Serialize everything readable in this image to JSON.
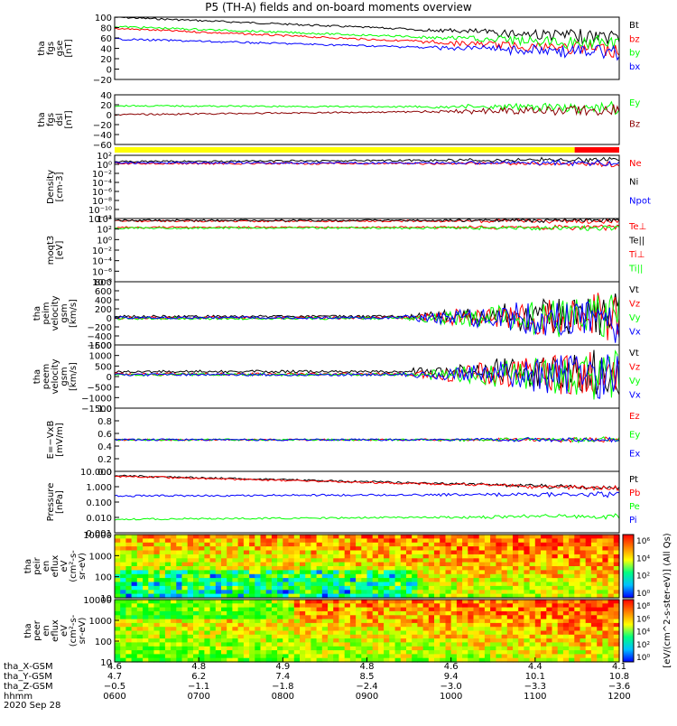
{
  "title": "P5 (TH-A) fields and on-board moments overview",
  "date_label": "2020 Sep 28",
  "colors": {
    "black": "#000000",
    "red": "#ff0000",
    "green": "#00ff00",
    "blue": "#0000ff",
    "darkred": "#8b0000",
    "yellow": "#ffff00"
  },
  "chart_data": [
    {
      "id": "fgs_gse",
      "type": "line",
      "ylabel": [
        "tha",
        "fgs",
        "gse",
        "[nT]"
      ],
      "yticks": [
        "100",
        "80",
        "60",
        "40",
        "20",
        "0",
        "−20"
      ],
      "ylim": [
        -20,
        100
      ],
      "series": [
        {
          "name": "Bt",
          "color": "#000000"
        },
        {
          "name": "bz",
          "color": "#ff0000"
        },
        {
          "name": "by",
          "color": "#00ff00"
        },
        {
          "name": "bx",
          "color": "#0000ff"
        }
      ]
    },
    {
      "id": "fgs_dsl",
      "type": "line",
      "ylabel": [
        "tha",
        "fgs",
        "dsl",
        "[nT]"
      ],
      "yticks": [
        "40",
        "20",
        "0",
        "−20",
        "−40",
        "−60"
      ],
      "ylim": [
        -70,
        40
      ],
      "series": [
        {
          "name": "Ey",
          "color": "#00ff00"
        },
        {
          "name": "Bz",
          "color": "#8b0000"
        }
      ]
    },
    {
      "id": "mode_bar",
      "type": "bar",
      "segments": [
        {
          "color": "#ffff00",
          "from_hour": 6.0,
          "to_hour": 11.47
        },
        {
          "color": "#ff0000",
          "from_hour": 11.47,
          "to_hour": 12.0
        }
      ]
    },
    {
      "id": "density",
      "type": "line",
      "ylabel": [
        "Density",
        "[cm-3]"
      ],
      "yticks": [
        "10²",
        "10⁰",
        "10⁻²",
        "10⁻⁴",
        "10⁻⁶",
        "10⁻⁸",
        "10⁻¹⁰",
        "10⁻¹²"
      ],
      "log": true,
      "series": [
        {
          "name": "Ne",
          "color": "#ff0000"
        },
        {
          "name": "Ni",
          "color": "#000000"
        },
        {
          "name": "Npot",
          "color": "#0000ff"
        }
      ]
    },
    {
      "id": "temperature",
      "type": "line",
      "ylabel": [
        "moqt3",
        "[eV]"
      ],
      "yticks": [
        "10⁴",
        "10²",
        "10⁰",
        "10⁻²",
        "10⁻⁴",
        "10⁻⁶",
        "10⁻⁸"
      ],
      "log": true,
      "series": [
        {
          "name": "Te⊥",
          "color": "#ff0000"
        },
        {
          "name": "Te||",
          "color": "#000000"
        },
        {
          "name": "Ti⊥",
          "color": "#ff0000"
        },
        {
          "name": "Ti||",
          "color": "#00ff00"
        }
      ]
    },
    {
      "id": "peim_velocity",
      "type": "line",
      "ylabel": [
        "tha",
        "peim",
        "velocity",
        "gsm",
        "[km/s]"
      ],
      "yticks": [
        "800",
        "600",
        "400",
        "200",
        "0",
        "−200",
        "−400",
        "−600"
      ],
      "ylim": [
        -600,
        800
      ],
      "series": [
        {
          "name": "Vt",
          "color": "#000000"
        },
        {
          "name": "Vz",
          "color": "#ff0000"
        },
        {
          "name": "Vy",
          "color": "#00ff00"
        },
        {
          "name": "Vx",
          "color": "#0000ff"
        }
      ]
    },
    {
      "id": "peem_velocity",
      "type": "line",
      "ylabel": [
        "tha",
        "peem",
        "velocity",
        "gsm",
        "[km/s]"
      ],
      "yticks": [
        "1500",
        "1000",
        "500",
        "0",
        "−500",
        "−1000",
        "−1500"
      ],
      "ylim": [
        -1500,
        1500
      ],
      "series": [
        {
          "name": "Vt",
          "color": "#000000"
        },
        {
          "name": "Vz",
          "color": "#ff0000"
        },
        {
          "name": "Vy",
          "color": "#00ff00"
        },
        {
          "name": "Vx",
          "color": "#0000ff"
        }
      ]
    },
    {
      "id": "efield",
      "type": "line",
      "ylabel": [
        "E=−VxB",
        "[mV/m]"
      ],
      "yticks": [
        "1.0",
        "0.8",
        "0.6",
        "0.4",
        "0.2",
        "0.0"
      ],
      "ylim": [
        0,
        1
      ],
      "series": [
        {
          "name": "Ez",
          "color": "#ff0000"
        },
        {
          "name": "Ey",
          "color": "#00ff00"
        },
        {
          "name": "Ex",
          "color": "#0000ff"
        }
      ]
    },
    {
      "id": "pressure",
      "type": "line",
      "ylabel": [
        "Pressure",
        "[nPa]"
      ],
      "yticks": [
        "10.000",
        "1.000",
        "0.100",
        "0.010",
        "0.001"
      ],
      "log": true,
      "series": [
        {
          "name": "Pt",
          "color": "#000000"
        },
        {
          "name": "Pb",
          "color": "#ff0000"
        },
        {
          "name": "Pe",
          "color": "#00ff00"
        },
        {
          "name": "Pi",
          "color": "#0000ff"
        }
      ]
    },
    {
      "id": "peir_spec",
      "type": "heatmap",
      "ylabel": [
        "tha",
        "peir",
        "en",
        "eflux",
        "eV",
        "(cm²‑s‑",
        "sr‑eV)"
      ],
      "yticks": [
        "10000",
        "1000",
        "100",
        "10"
      ],
      "log": true
    },
    {
      "id": "peer_spec",
      "type": "heatmap",
      "ylabel": [
        "tha",
        "peer",
        "en",
        "eflux",
        "eV",
        "(cm²‑s‑",
        "sr‑eV)"
      ],
      "yticks": [
        "10000",
        "1000",
        "100",
        "10"
      ],
      "log": true
    }
  ],
  "colorbar": {
    "label": "[eV/(cm^2-s-ster-eV)] (All Qs)",
    "ticks_top": [
      "10⁶",
      "10⁴",
      "10²",
      "10⁰"
    ],
    "ticks_bottom": [
      "10⁸",
      "10⁶",
      "10⁴",
      "10²",
      "10⁰"
    ]
  },
  "x_axis": {
    "row_labels": [
      "tha_X‑GSM",
      "tha_Y‑GSM",
      "tha_Z‑GSM",
      "hhmm"
    ],
    "columns": [
      {
        "x": "4.6",
        "y": "4.7",
        "z": "−0.5",
        "t": "0600"
      },
      {
        "x": "4.8",
        "y": "6.2",
        "z": "−1.1",
        "t": "0700"
      },
      {
        "x": "4.9",
        "y": "7.4",
        "z": "−1.8",
        "t": "0800"
      },
      {
        "x": "4.8",
        "y": "8.5",
        "z": "−2.4",
        "t": "0900"
      },
      {
        "x": "4.6",
        "y": "9.4",
        "z": "−3.0",
        "t": "1000"
      },
      {
        "x": "4.4",
        "y": "10.1",
        "z": "−3.3",
        "t": "1100"
      },
      {
        "x": "4.1",
        "y": "10.8",
        "z": "−3.6",
        "t": "1200"
      }
    ]
  }
}
